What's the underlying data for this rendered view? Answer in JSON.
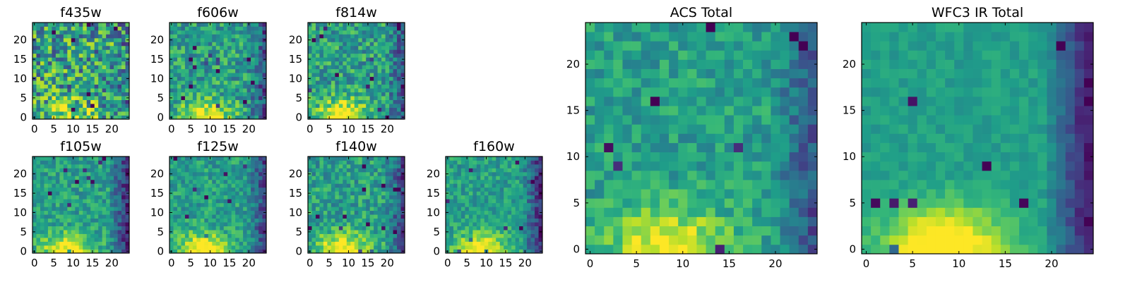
{
  "figure": {
    "colormap": "viridis"
  },
  "chart_data": [
    {
      "type": "heatmap",
      "title": "f435w",
      "grid_size": 25,
      "xlim": [
        -0.5,
        24.5
      ],
      "ylim": [
        -0.5,
        24.5
      ],
      "xticks": [
        0,
        5,
        10,
        15,
        20
      ],
      "yticks": [
        0,
        5,
        10,
        15,
        20
      ],
      "noise": 0.35,
      "glow_strength": 0.35,
      "edge_dark": 0.1,
      "seed": 11
    },
    {
      "type": "heatmap",
      "title": "f606w",
      "grid_size": 25,
      "xlim": [
        -0.5,
        24.5
      ],
      "ylim": [
        -0.5,
        24.5
      ],
      "xticks": [
        0,
        5,
        10,
        15,
        20
      ],
      "yticks": [
        0,
        5,
        10,
        15,
        20
      ],
      "noise": 0.22,
      "glow_strength": 0.5,
      "edge_dark": 0.3,
      "seed": 23
    },
    {
      "type": "heatmap",
      "title": "f814w",
      "grid_size": 25,
      "xlim": [
        -0.5,
        24.5
      ],
      "ylim": [
        -0.5,
        24.5
      ],
      "xticks": [
        0,
        5,
        10,
        15,
        20
      ],
      "yticks": [
        0,
        5,
        10,
        15,
        20
      ],
      "noise": 0.22,
      "glow_strength": 0.55,
      "edge_dark": 0.3,
      "seed": 37
    },
    {
      "type": "heatmap",
      "title": "f105w",
      "grid_size": 25,
      "xlim": [
        -0.5,
        24.5
      ],
      "ylim": [
        -0.5,
        24.5
      ],
      "xticks": [
        0,
        5,
        10,
        15,
        20
      ],
      "yticks": [
        0,
        5,
        10,
        15,
        20
      ],
      "noise": 0.16,
      "glow_strength": 0.5,
      "edge_dark": 0.45,
      "seed": 41
    },
    {
      "type": "heatmap",
      "title": "f125w",
      "grid_size": 25,
      "xlim": [
        -0.5,
        24.5
      ],
      "ylim": [
        -0.5,
        24.5
      ],
      "xticks": [
        0,
        5,
        10,
        15,
        20
      ],
      "yticks": [
        0,
        5,
        10,
        15,
        20
      ],
      "noise": 0.16,
      "glow_strength": 0.55,
      "edge_dark": 0.35,
      "seed": 53
    },
    {
      "type": "heatmap",
      "title": "f140w",
      "grid_size": 25,
      "xlim": [
        -0.5,
        24.5
      ],
      "ylim": [
        -0.5,
        24.5
      ],
      "xticks": [
        0,
        5,
        10,
        15,
        20
      ],
      "yticks": [
        0,
        5,
        10,
        15,
        20
      ],
      "noise": 0.18,
      "glow_strength": 0.55,
      "edge_dark": 0.35,
      "seed": 67
    },
    {
      "type": "heatmap",
      "title": "f160w",
      "grid_size": 25,
      "xlim": [
        -0.5,
        24.5
      ],
      "ylim": [
        -0.5,
        24.5
      ],
      "xticks": [
        0,
        5,
        10,
        15,
        20
      ],
      "yticks": [
        0,
        5,
        10,
        15,
        20
      ],
      "noise": 0.15,
      "glow_strength": 0.55,
      "edge_dark": 0.45,
      "seed": 79
    },
    {
      "type": "heatmap",
      "title": "ACS Total",
      "grid_size": 25,
      "xlim": [
        -0.5,
        24.5
      ],
      "ylim": [
        -0.5,
        24.5
      ],
      "xticks": [
        0,
        5,
        10,
        15,
        20
      ],
      "yticks": [
        0,
        5,
        10,
        15,
        20
      ],
      "noise": 0.14,
      "glow_strength": 0.45,
      "edge_dark": 0.3,
      "seed": 97
    },
    {
      "type": "heatmap",
      "title": "WFC3 IR Total",
      "grid_size": 25,
      "xlim": [
        -0.5,
        24.5
      ],
      "ylim": [
        -0.5,
        24.5
      ],
      "xticks": [
        0,
        5,
        10,
        15,
        20
      ],
      "yticks": [
        0,
        5,
        10,
        15,
        20
      ],
      "noise": 0.07,
      "glow_strength": 0.6,
      "edge_dark": 0.5,
      "seed": 103
    }
  ]
}
